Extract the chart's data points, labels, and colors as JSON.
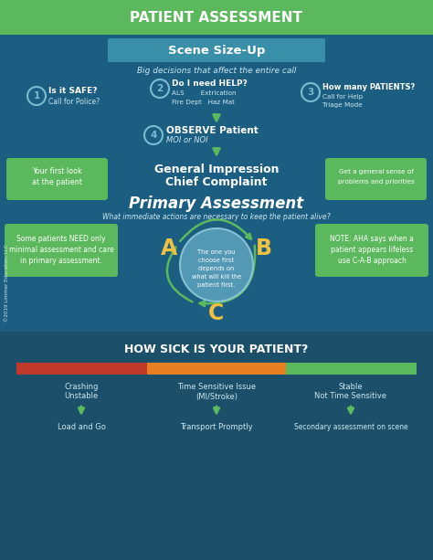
{
  "bg_color": "#1b5e82",
  "header_color": "#5cb85c",
  "header_text": "PATIENT ASSESSMENT",
  "header_text_color": "#ffffff",
  "scene_box_color": "#3a8fa8",
  "scene_text": "Scene Size-Up",
  "scene_subtitle": "Big decisions that affect the entire call",
  "green_box": "#5cb85c",
  "arrow_green": "#5cb85c",
  "circle_border": "#7abdd0",
  "text_white": "#ffffff",
  "text_light": "#cce8f0",
  "abc_color": "#f0c040",
  "abc_circle_color": "#5a9fba",
  "red_bar": "#c0392b",
  "yellow_bar": "#e67e22",
  "green_bar": "#5cb85c",
  "bottom_bg": "#1b4f6a"
}
